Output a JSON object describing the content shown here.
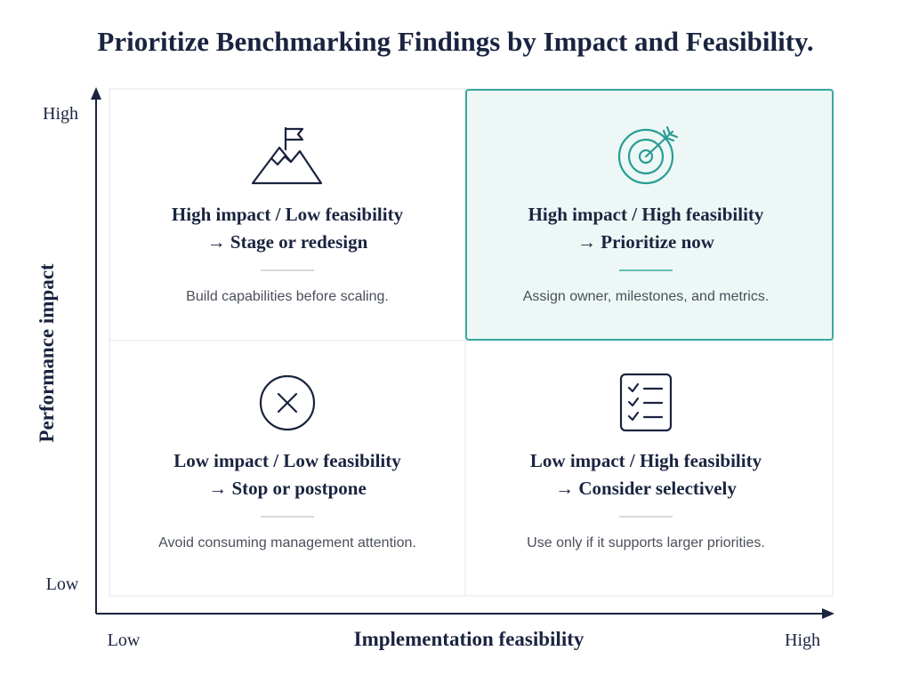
{
  "title": "Prioritize Benchmarking Findings by Impact and Feasibility.",
  "y_axis": {
    "label": "Performance impact",
    "high": "High",
    "low": "Low"
  },
  "x_axis": {
    "label": "Implementation feasibility",
    "low": "Low",
    "high": "High"
  },
  "quadrants": [
    {
      "heading": "High impact / Low feasibility",
      "action": "→ Stage or redesign",
      "description": "Build capabilities before scaling."
    },
    {
      "heading": "High impact / High feasibility",
      "action": "→ Prioritize now",
      "description": "Assign owner, milestones, and metrics."
    },
    {
      "heading": "Low impact / Low feasibility",
      "action": "→ Stop or postpone",
      "description": "Avoid consuming management attention."
    },
    {
      "heading": "Low impact / High feasibility",
      "action": "→ Consider selectively",
      "description": "Use only if it supports larger priorities."
    }
  ]
}
